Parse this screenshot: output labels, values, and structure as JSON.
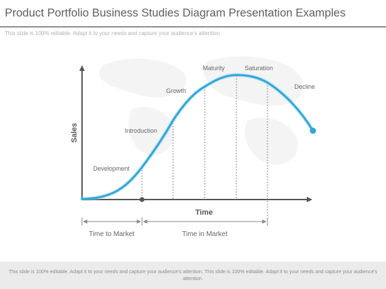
{
  "slide": {
    "title": "Product Portfolio Business Studies Diagram Presentation Examples",
    "subtitle": "This slide is 100% editable. Adapt it to your needs and capture your audience's attention.",
    "footer": "This slide is 100% editable. Adapt it to your needs and capture your audience's attention. This slide is 100% editable. Adapt it to your needs and capture your audience's attention."
  },
  "diagram": {
    "y_axis_label": "Sales",
    "x_axis_label": "Time",
    "stages": [
      "Development",
      "Introduction",
      "Growth",
      "Maturity",
      "Saturation",
      "Decline"
    ],
    "spans": [
      "Time to Market",
      "Time in Market"
    ],
    "colors": {
      "curve": "#2ea8d6",
      "axis": "#555555",
      "text": "#666666"
    }
  }
}
